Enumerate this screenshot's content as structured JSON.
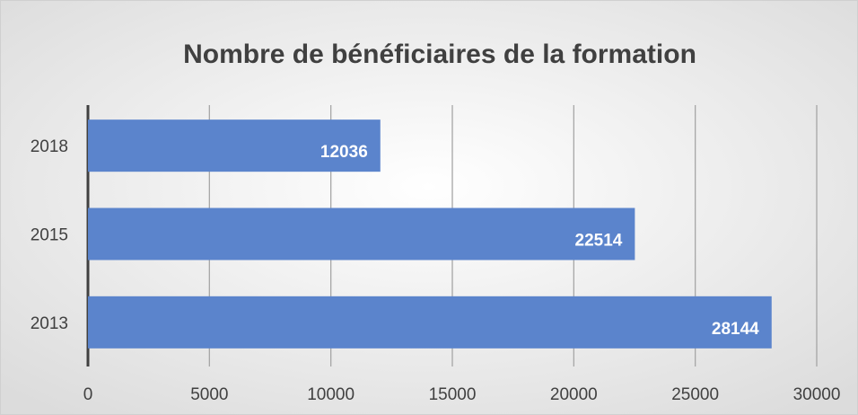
{
  "chart_data": {
    "type": "bar",
    "orientation": "horizontal",
    "title": "Nombre de bénéficiaires de la formation",
    "categories": [
      "2018",
      "2015",
      "2013"
    ],
    "values": [
      12036,
      22514,
      28144
    ],
    "color": "#5b84cc",
    "xlim": [
      0,
      30000
    ],
    "xticks": [
      0,
      5000,
      10000,
      15000,
      20000,
      25000,
      30000
    ],
    "grid": true
  }
}
